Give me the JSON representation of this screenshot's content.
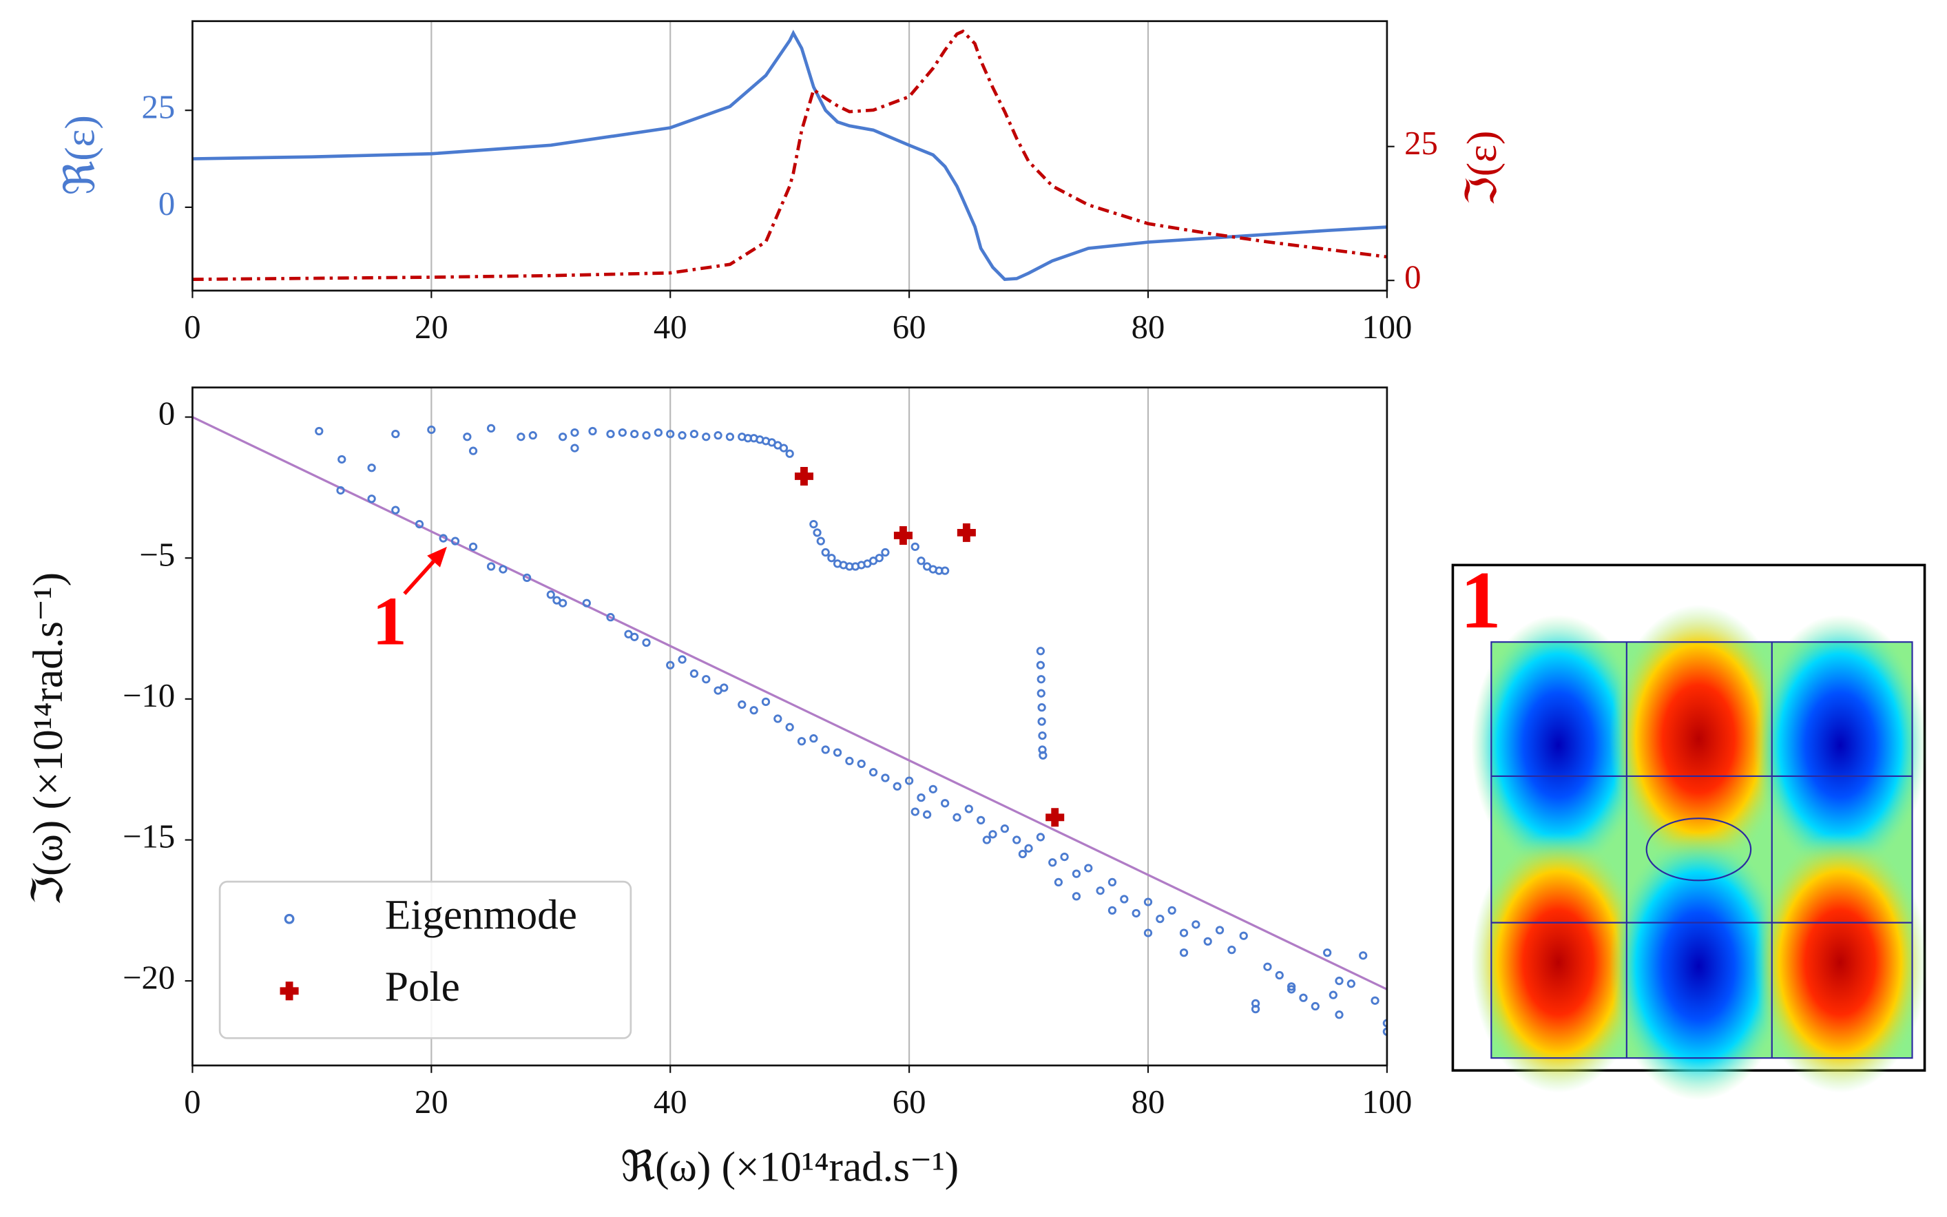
{
  "chart_data": [
    {
      "type": "line",
      "x": [
        0,
        10,
        20,
        30,
        40,
        45,
        48,
        50,
        50.3,
        51,
        52,
        53,
        54,
        55,
        57,
        60,
        62,
        63,
        64,
        64.5,
        65.5,
        66,
        67,
        68,
        69,
        70,
        72,
        75,
        80,
        85,
        90,
        95,
        100
      ],
      "xlim": [
        0,
        100
      ],
      "xticks": [
        0,
        20,
        40,
        60,
        80,
        100
      ],
      "ylim": [
        -21.5,
        48
      ],
      "yticks": [
        0,
        25
      ],
      "ylabel": "ℜ(ε)",
      "y2lim": [
        -1.9,
        48.4
      ],
      "y2ticks": [
        0,
        25
      ],
      "y2label": "ℑ(ε)",
      "grid": true,
      "series": [
        {
          "color": "#4b7bd0",
          "linestyle": "solid",
          "values": [
            12.5,
            13,
            13.8,
            16,
            20.5,
            26,
            34,
            43,
            44.9,
            41,
            31,
            25,
            22,
            21,
            19.9,
            16,
            13.5,
            10.5,
            5.4,
            2,
            -5,
            -10.6,
            -15.5,
            -18.6,
            -18.4,
            -17,
            -13.8,
            -10.6,
            -9,
            -8,
            -7,
            -6,
            -5.1
          ]
        },
        {
          "color": "#c00000",
          "linestyle": "dashdot",
          "axis": "y2",
          "values": [
            0.2,
            0.4,
            0.6,
            0.9,
            1.4,
            3,
            7.2,
            17.6,
            20,
            28,
            35.6,
            34,
            32.6,
            31.5,
            31.8,
            34.3,
            39.6,
            43,
            46,
            46.5,
            44.2,
            41,
            36,
            31.5,
            26.5,
            22.2,
            17.6,
            14.1,
            10.6,
            8.8,
            7.2,
            5.8,
            4.4
          ]
        }
      ]
    },
    {
      "type": "scatter",
      "xlim": [
        0,
        100
      ],
      "xticks": [
        0,
        20,
        40,
        60,
        80,
        100
      ],
      "ylim": [
        -23,
        1.05
      ],
      "yticks": [
        0,
        {
          "value": -5,
          "label": "−5"
        },
        {
          "value": -10,
          "label": "−10"
        },
        {
          "value": -15,
          "label": "−15"
        },
        {
          "value": -20,
          "label": "−20"
        }
      ],
      "xlabel": "ℜ(ω)    (×10¹⁴rad.s⁻¹)",
      "ylabel": "ℑ(ω)   (×10¹⁴rad.s⁻¹)",
      "grid": true,
      "legend": "lower left",
      "series": [
        {
          "name": "Eigenmode",
          "color": "#4b7bd0",
          "marker": "o",
          "x": [
            10.6,
            17,
            20,
            23,
            25,
            27.5,
            28.5,
            31,
            32,
            33.5,
            35,
            36,
            37,
            38,
            39,
            40,
            41,
            42,
            43,
            44,
            45,
            46,
            46.5,
            47,
            47.5,
            48,
            48.5,
            49,
            49.5,
            50,
            23.5,
            32,
            15,
            12.5,
            52,
            52.3,
            52.6,
            53,
            53.5,
            54,
            54.5,
            55,
            55.5,
            56,
            56.5,
            57,
            57.5,
            58,
            60.5,
            61,
            61.5,
            62,
            62.5,
            63,
            71,
            71,
            71.05,
            71.05,
            71.1,
            71.1,
            71.15,
            71.15,
            71.2,
            12.4,
            15,
            17,
            19,
            21,
            22,
            23.5,
            25,
            26,
            28,
            30,
            30.5,
            31,
            33,
            35,
            36.5,
            37,
            38,
            40,
            41,
            42,
            43,
            44,
            44.5,
            46,
            47,
            48,
            49,
            50,
            51,
            52,
            53,
            54,
            55,
            56,
            57,
            58,
            59,
            60,
            61,
            62,
            63,
            64,
            65,
            66,
            67,
            68,
            69,
            70,
            71,
            72,
            73,
            74,
            75,
            76,
            77,
            78,
            79,
            80,
            81,
            82,
            83,
            84,
            85,
            86,
            87,
            88,
            89,
            90,
            91,
            92,
            93,
            94,
            95,
            95.5,
            96,
            97,
            98,
            99,
            100,
            60.5,
            61.5,
            66.5,
            69.5,
            72.5,
            74,
            77,
            80,
            83,
            89,
            92,
            96,
            100
          ],
          "values": [
            -0.5,
            -0.6,
            -0.45,
            -0.7,
            -0.4,
            -0.7,
            -0.65,
            -0.7,
            -0.55,
            -0.5,
            -0.6,
            -0.55,
            -0.6,
            -0.65,
            -0.55,
            -0.6,
            -0.65,
            -0.6,
            -0.7,
            -0.65,
            -0.7,
            -0.7,
            -0.75,
            -0.75,
            -0.8,
            -0.85,
            -0.9,
            -1.0,
            -1.1,
            -1.3,
            -1.2,
            -1.1,
            -1.8,
            -1.5,
            -3.8,
            -4.1,
            -4.4,
            -4.8,
            -5.0,
            -5.2,
            -5.25,
            -5.3,
            -5.3,
            -5.25,
            -5.2,
            -5.1,
            -5.0,
            -4.8,
            -4.6,
            -5.1,
            -5.3,
            -5.4,
            -5.45,
            -5.45,
            -8.3,
            -8.8,
            -9.3,
            -9.8,
            -10.3,
            -10.8,
            -11.3,
            -11.8,
            -12.0,
            -2.6,
            -2.9,
            -3.3,
            -3.8,
            -4.3,
            -4.4,
            -4.6,
            -5.3,
            -5.4,
            -5.7,
            -6.3,
            -6.5,
            -6.6,
            -6.6,
            -7.1,
            -7.7,
            -7.8,
            -8.0,
            -8.8,
            -8.6,
            -9.1,
            -9.3,
            -9.7,
            -9.6,
            -10.2,
            -10.4,
            -10.1,
            -10.7,
            -11.0,
            -11.5,
            -11.4,
            -11.8,
            -11.9,
            -12.2,
            -12.3,
            -12.6,
            -12.8,
            -13.1,
            -12.9,
            -13.5,
            -13.2,
            -13.7,
            -14.2,
            -13.9,
            -14.3,
            -14.8,
            -14.6,
            -15.0,
            -15.3,
            -14.9,
            -15.8,
            -15.6,
            -16.2,
            -16.0,
            -16.8,
            -16.5,
            -17.1,
            -17.6,
            -17.2,
            -17.8,
            -17.5,
            -18.3,
            -18.0,
            -18.6,
            -18.2,
            -18.9,
            -18.4,
            -20.8,
            -19.5,
            -19.8,
            -20.3,
            -20.6,
            -20.9,
            -19.0,
            -20.5,
            -21.2,
            -20.1,
            -19.1,
            -20.7,
            -21.5,
            -14.0,
            -14.1,
            -15.0,
            -15.5,
            -16.5,
            -17.0,
            -17.5,
            -18.3,
            -19.0,
            -21.0,
            -20.2,
            -20.0,
            -21.8
          ]
        },
        {
          "name": "Pole",
          "color": "#c00000",
          "marker": "P",
          "x": [
            51.2,
            59.5,
            64.8,
            72.2
          ],
          "values": [
            -2.1,
            -4.2,
            -4.1,
            -14.2
          ]
        },
        {
          "color": "#b07cc6",
          "marker": "line",
          "x": [
            0,
            100
          ],
          "values": [
            0,
            -20.3
          ]
        }
      ],
      "annotation": {
        "text": "1",
        "x": 16.5,
        "y": -7.5,
        "xy": [
          21.3,
          -4.6
        ],
        "color": "#ff0000"
      }
    }
  ],
  "inset": {
    "label": "1"
  }
}
